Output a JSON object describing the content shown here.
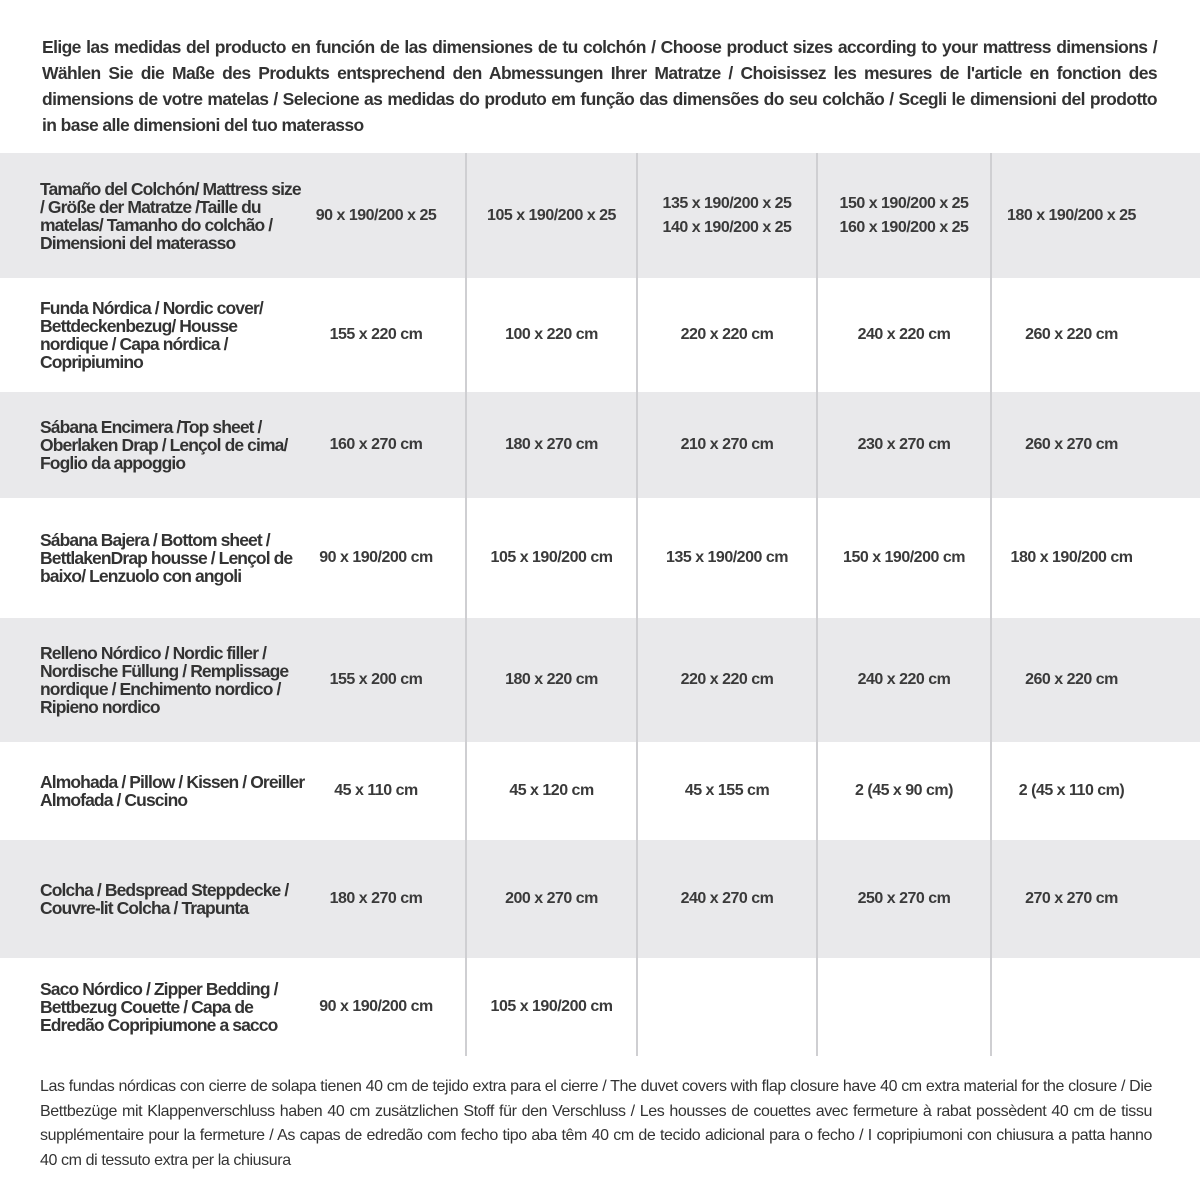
{
  "intro": "Elige las medidas del producto en función de las dimensiones de tu colchón / Choose product sizes according to your mattress dimensions / Wählen Sie die Maße des Produkts entsprechend den Abmessungen Ihrer Matratze / Choisissez les mesures de l'article en fonction des dimensions de votre matelas / Selecione as medidas do produto em função das dimensões do seu colchão / Scegli le dimensioni del prodotto in base alle dimensioni del tuo materasso",
  "rows": [
    {
      "label": "Tamaño del Colchón/ Mattress size / Größe der Matratze /Taille du matelas/ Tamanho do colchão / Dimensioni del materasso",
      "cells": [
        "90 x 190/200 x 25",
        "105 x 190/200 x 25",
        "135 x 190/200 x 25\n140 x 190/200 x 25",
        "150 x 190/200 x 25\n160 x 190/200 x 25",
        "180 x 190/200 x 25"
      ]
    },
    {
      "label": "Funda Nórdica /  Nordic cover/ Bettdeckenbezug/ Housse nordique  / Capa nórdica / Copripiumino",
      "cells": [
        "155 x 220 cm",
        "100 x 220 cm",
        "220 x 220 cm",
        "240 x 220 cm",
        "260 x 220 cm"
      ]
    },
    {
      "label": "Sábana Encimera /Top sheet / Oberlaken Drap / Lençol de cima/ Foglio da appoggio",
      "cells": [
        "160 x 270 cm",
        "180 x 270 cm",
        "210 x 270 cm",
        "230 x 270 cm",
        "260 x 270 cm"
      ]
    },
    {
      "label": "Sábana Bajera / Bottom sheet / BettlakenDrap housse / Lençol de baixo/ Lenzuolo con angoli",
      "cells": [
        "90 x 190/200 cm",
        "105 x 190/200 cm",
        "135 x 190/200 cm",
        "150 x 190/200 cm",
        "180 x 190/200 cm"
      ]
    },
    {
      "label": "Relleno Nórdico / Nordic filler / Nordische Füllung / Remplissage nordique / Enchimento nordico / Ripieno nordico",
      "cells": [
        "155 x 200 cm",
        "180 x 220 cm",
        "220 x 220 cm",
        "240 x 220 cm",
        "260 x 220 cm"
      ]
    },
    {
      "label": "Almohada  / Pillow / Kissen / Oreiller Almofada / Cuscino",
      "cells": [
        "45 x 110 cm",
        "45 x 120 cm",
        "45 x 155 cm",
        "2 (45 x 90 cm)",
        "2 (45 x 110 cm)"
      ]
    },
    {
      "label": "Colcha / Bedspread Steppdecke / Couvre-lit Colcha / Trapunta",
      "cells": [
        "180 x 270 cm",
        "200 x 270 cm",
        "240 x 270 cm",
        "250 x 270 cm",
        "270 x 270 cm"
      ]
    },
    {
      "label": "Saco Nórdico / Zipper Bedding / Bettbezug Couette  / Capa de Edredão Copripiumone a sacco",
      "cells": [
        "90 x 190/200 cm",
        "105 x 190/200 cm",
        "",
        "",
        ""
      ]
    }
  ],
  "footer": "Las fundas nórdicas con cierre de solapa tienen 40 cm de tejido extra para el cierre  / The duvet covers with flap closure have 40 cm extra material for the closure / Die Bettbezüge mit Klappenverschluss haben 40 cm zusätzlichen Stoff für den Verschluss / Les housses de couettes avec fermeture à rabat possèdent 40 cm de tissu supplémentaire pour la fermeture / As capas de edredão com fecho tipo aba têm 40 cm de tecido adicional para o fecho / I copripiumoni con chiusura a patta hanno 40 cm di tessuto extra per la chiusura"
}
